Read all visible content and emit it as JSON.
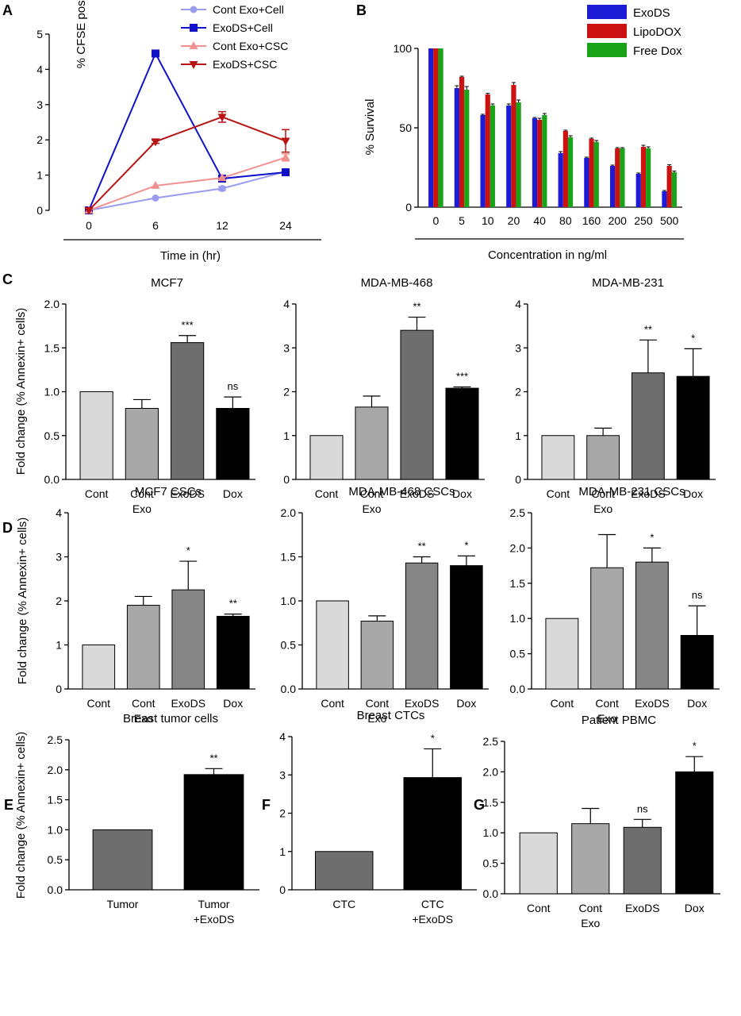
{
  "chart_data": [
    {
      "id": "A",
      "panel": "A",
      "type": "line",
      "title": "",
      "xlabel": "Time in (hr)",
      "ylabel": "% CFSE positive",
      "x": [
        0,
        6,
        12,
        24
      ],
      "categories": [
        "0",
        "6",
        "12",
        "24"
      ],
      "ylim": [
        0,
        5
      ],
      "yticks": [
        "0",
        "1",
        "2",
        "3",
        "4",
        "5"
      ],
      "legend_position": "top",
      "series": [
        {
          "name": "Cont Exo+Cell",
          "color": "#9a9cf0",
          "marker": "circle",
          "values": [
            0,
            0.35,
            0.62,
            1.1
          ],
          "errors": [
            0,
            0.02,
            0.05,
            0.05
          ]
        },
        {
          "name": "ExoDS+Cell",
          "color": "#1111cc",
          "marker": "square",
          "values": [
            0,
            4.45,
            0.9,
            1.08
          ],
          "errors": [
            0,
            0.05,
            0.08,
            0.08
          ]
        },
        {
          "name": "Cont Exo+CSC",
          "color": "#f29090",
          "marker": "triangle-up",
          "values": [
            0,
            0.7,
            0.92,
            1.5
          ],
          "errors": [
            0,
            0.02,
            0.04,
            0.1
          ]
        },
        {
          "name": "ExoDS+CSC",
          "color": "#b81414",
          "marker": "triangle-down",
          "values": [
            0,
            1.95,
            2.65,
            1.97
          ],
          "errors": [
            0,
            0.05,
            0.15,
            0.32
          ]
        }
      ]
    },
    {
      "id": "B",
      "panel": "B",
      "type": "bar",
      "title": "",
      "xlabel": "Concentration in ng/ml",
      "ylabel": "% Survival",
      "categories": [
        "0",
        "5",
        "10",
        "20",
        "40",
        "80",
        "160",
        "200",
        "250",
        "500"
      ],
      "ylim": [
        0,
        100
      ],
      "yticks": [
        "0",
        "50",
        "100"
      ],
      "legend_position": "top-right",
      "series": [
        {
          "name": "ExoDS",
          "color": "#1c1cd6",
          "values": [
            100,
            75,
            58,
            64,
            56,
            34,
            31,
            26,
            21,
            10
          ],
          "errors": [
            0,
            1.5,
            0.5,
            1,
            0.5,
            1,
            0.5,
            0.5,
            0.5,
            0.5
          ]
        },
        {
          "name": "LipoDOX",
          "color": "#cc1111",
          "values": [
            100,
            82,
            71,
            77,
            55,
            48,
            43,
            37,
            38,
            26
          ],
          "errors": [
            0,
            0.5,
            0.7,
            1.5,
            1,
            0.5,
            0.5,
            0.5,
            1,
            0.7
          ]
        },
        {
          "name": "Free Dox",
          "color": "#19a319",
          "values": [
            100,
            74,
            64,
            66,
            58,
            44,
            41,
            37,
            37,
            22
          ],
          "errors": [
            0,
            2,
            1,
            1.5,
            1,
            1,
            1,
            0.5,
            1,
            0.7
          ]
        }
      ]
    },
    {
      "id": "C1",
      "panel": "C",
      "type": "bar",
      "title": "MCF7",
      "ylabel": "Fold change (% Annexin+ cells)",
      "ylabel_sup": "+",
      "categories": [
        "Cont",
        "Cont Exo",
        "ExoDS",
        "Dox"
      ],
      "ylim": [
        0,
        2.0
      ],
      "yticks": [
        "0.0",
        "0.5",
        "1.0",
        "1.5",
        "2.0"
      ],
      "values": [
        1.0,
        0.81,
        1.56,
        0.81
      ],
      "errors": [
        0,
        0.1,
        0.08,
        0.13
      ],
      "colors": [
        "#d9d9d9",
        "#a8a8a8",
        "#6e6e6e",
        "#000000"
      ],
      "significance": [
        "",
        "",
        "***",
        "ns"
      ]
    },
    {
      "id": "C2",
      "panel": "",
      "type": "bar",
      "title": "MDA-MB-468",
      "ylabel": "",
      "categories": [
        "Cont",
        "Cont Exo",
        "ExoDS",
        "Dox"
      ],
      "ylim": [
        0,
        4
      ],
      "yticks": [
        "0",
        "1",
        "2",
        "3",
        "4"
      ],
      "values": [
        1.0,
        1.65,
        3.4,
        2.08
      ],
      "errors": [
        0,
        0.25,
        0.3,
        0.03
      ],
      "colors": [
        "#d9d9d9",
        "#a8a8a8",
        "#6e6e6e",
        "#000000"
      ],
      "significance": [
        "",
        "",
        "**",
        "***"
      ]
    },
    {
      "id": "C3",
      "panel": "",
      "type": "bar",
      "title": "MDA-MB-231",
      "ylabel": "",
      "categories": [
        "Cont",
        "Cont Exo",
        "ExoDS",
        "Dox"
      ],
      "ylim": [
        0,
        4
      ],
      "yticks": [
        "0",
        "1",
        "2",
        "3",
        "4"
      ],
      "values": [
        1.0,
        1.0,
        2.43,
        2.35
      ],
      "errors": [
        0,
        0.17,
        0.75,
        0.63
      ],
      "colors": [
        "#d9d9d9",
        "#a8a8a8",
        "#6e6e6e",
        "#000000"
      ],
      "significance": [
        "",
        "",
        "**",
        "*"
      ]
    },
    {
      "id": "D1",
      "panel": "D",
      "type": "bar",
      "title": "MCF7 CSCs",
      "ylabel": "Fold change (% Annexin+ cells)",
      "ylabel_sup": "+",
      "categories": [
        "Cont",
        "Cont Exo",
        "ExoDS",
        "Dox"
      ],
      "ylim": [
        0,
        4
      ],
      "yticks": [
        "0",
        "1",
        "2",
        "3",
        "4"
      ],
      "values": [
        1.0,
        1.9,
        2.25,
        1.65
      ],
      "errors": [
        0,
        0.2,
        0.65,
        0.05
      ],
      "colors": [
        "#d9d9d9",
        "#a8a8a8",
        "#868686",
        "#000000"
      ],
      "significance": [
        "",
        "",
        "*",
        "**"
      ]
    },
    {
      "id": "D2",
      "panel": "",
      "type": "bar",
      "title": "MDA-MB-468 CSCs",
      "ylabel": "",
      "categories": [
        "Cont",
        "Cont Exo",
        "ExoDS",
        "Dox"
      ],
      "ylim": [
        0,
        2.0
      ],
      "yticks": [
        "0.0",
        "0.5",
        "1.0",
        "1.5",
        "2.0"
      ],
      "values": [
        1.0,
        0.77,
        1.43,
        1.4
      ],
      "errors": [
        0,
        0.06,
        0.07,
        0.11
      ],
      "colors": [
        "#d9d9d9",
        "#a8a8a8",
        "#868686",
        "#000000"
      ],
      "significance": [
        "",
        "",
        "**",
        "*"
      ]
    },
    {
      "id": "D3",
      "panel": "",
      "type": "bar",
      "title": "MDA-MB-231 CSCs",
      "ylabel": "",
      "categories": [
        "Cont",
        "Cont Exo",
        "ExoDS",
        "Dox"
      ],
      "ylim": [
        0,
        2.5
      ],
      "yticks": [
        "0.0",
        "0.5",
        "1.0",
        "1.5",
        "2.0",
        "2.5"
      ],
      "values": [
        1.0,
        1.72,
        1.8,
        0.76
      ],
      "errors": [
        0,
        0.47,
        0.2,
        0.42
      ],
      "colors": [
        "#d9d9d9",
        "#a8a8a8",
        "#868686",
        "#000000"
      ],
      "significance": [
        "",
        "",
        "*",
        "ns"
      ]
    },
    {
      "id": "E",
      "panel": "E",
      "type": "bar",
      "title": "Breast tumor cells",
      "ylabel": "Fold change (% Annexin+ cells)",
      "ylabel_sup": "+",
      "categories": [
        "Tumor",
        "Tumor +ExoDS"
      ],
      "ylim": [
        0,
        2.5
      ],
      "yticks": [
        "0.0",
        "0.5",
        "1.0",
        "1.5",
        "2.0",
        "2.5"
      ],
      "values": [
        1.0,
        1.92
      ],
      "errors": [
        0,
        0.1
      ],
      "colors": [
        "#6e6e6e",
        "#000000"
      ],
      "significance": [
        "",
        "**"
      ]
    },
    {
      "id": "F",
      "panel": "F",
      "type": "bar",
      "title": "Breast CTCs",
      "ylabel": "",
      "categories": [
        "CTC",
        "CTC +ExoDS"
      ],
      "ylim": [
        0,
        4
      ],
      "yticks": [
        "0",
        "1",
        "2",
        "3",
        "4"
      ],
      "values": [
        1.0,
        2.93
      ],
      "errors": [
        0,
        0.75
      ],
      "colors": [
        "#6e6e6e",
        "#000000"
      ],
      "significance": [
        "",
        "*"
      ]
    },
    {
      "id": "G",
      "panel": "G",
      "type": "bar",
      "title": "Patient PBMC",
      "ylabel": "",
      "categories": [
        "Cont",
        "Cont Exo",
        "ExoDS",
        "Dox"
      ],
      "ylim": [
        0,
        2.5
      ],
      "yticks": [
        "0.0",
        "0.5",
        "1.0",
        "1.5",
        "2.0",
        "2.5"
      ],
      "values": [
        1.0,
        1.15,
        1.09,
        2.0
      ],
      "errors": [
        0,
        0.25,
        0.13,
        0.25
      ],
      "colors": [
        "#d9d9d9",
        "#a8a8a8",
        "#6e6e6e",
        "#000000"
      ],
      "significance": [
        "",
        "",
        "ns",
        "*"
      ]
    }
  ]
}
